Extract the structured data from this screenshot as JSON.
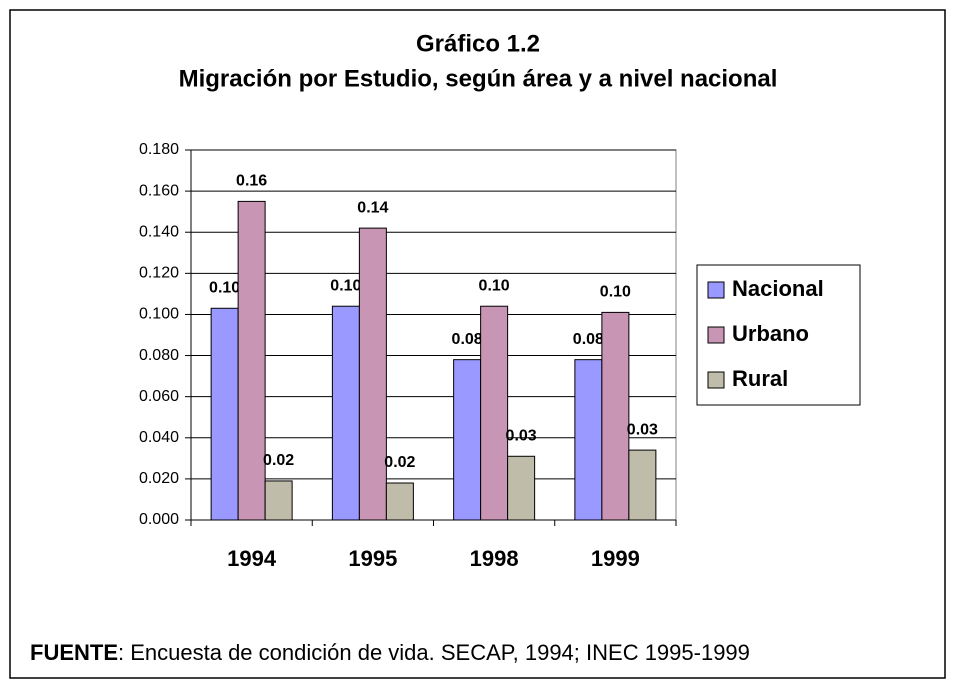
{
  "chart_data": {
    "type": "bar",
    "title": "Gráfico 1.2",
    "subtitle": "Migración por Estudio, según área y a nivel nacional",
    "categories": [
      "1994",
      "1995",
      "1998",
      "1999"
    ],
    "series": [
      {
        "name": "Nacional",
        "color": "#9999ff",
        "values": [
          0.103,
          0.104,
          0.078,
          0.078
        ],
        "value_labels": [
          "0.10",
          "0.10",
          "0.08",
          "0.08"
        ]
      },
      {
        "name": "Urbano",
        "color": "#c896b4",
        "values": [
          0.155,
          0.142,
          0.104,
          0.101
        ],
        "value_labels": [
          "0.16",
          "0.14",
          "0.10",
          "0.10"
        ]
      },
      {
        "name": "Rural",
        "color": "#c0bcaa",
        "values": [
          0.019,
          0.018,
          0.031,
          0.034
        ],
        "value_labels": [
          "0.02",
          "0.02",
          "0.03",
          "0.03"
        ]
      }
    ],
    "ylim": [
      0,
      0.18
    ],
    "yticks": [
      {
        "value": 0,
        "label": "0.000"
      },
      {
        "value": 0.02,
        "label": "0.020"
      },
      {
        "value": 0.04,
        "label": "0.040"
      },
      {
        "value": 0.06,
        "label": "0.060"
      },
      {
        "value": 0.08,
        "label": "0.080"
      },
      {
        "value": 0.1,
        "label": "0.100"
      },
      {
        "value": 0.12,
        "label": "0.120"
      },
      {
        "value": 0.14,
        "label": "0.140"
      },
      {
        "value": 0.16,
        "label": "0.160"
      },
      {
        "value": 0.18,
        "label": "0.180"
      }
    ],
    "grid": true,
    "legend": "right",
    "source_label": "FUENTE",
    "source_text": ": Encuesta de condición de vida. SECAP, 1994; INEC 1995-1999"
  }
}
